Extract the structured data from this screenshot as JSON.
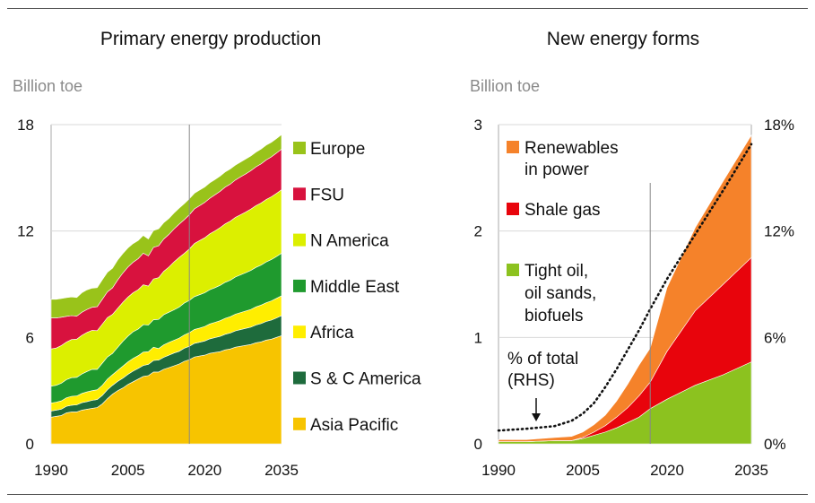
{
  "charts": [
    {
      "title": "Primary energy production",
      "unit": "Billion toe",
      "chart_data": {
        "type": "area",
        "stacked": true,
        "x": [
          1990,
          1991,
          1992,
          1993,
          1994,
          1995,
          1996,
          1997,
          1998,
          1999,
          2000,
          2001,
          2002,
          2003,
          2004,
          2005,
          2006,
          2007,
          2008,
          2009,
          2010,
          2011,
          2012,
          2013,
          2014,
          2015,
          2016,
          2017,
          2018,
          2019,
          2020,
          2021,
          2022,
          2023,
          2024,
          2025,
          2026,
          2027,
          2028,
          2029,
          2030,
          2031,
          2032,
          2033,
          2034,
          2035
        ],
        "x_ticks": [
          1990,
          2005,
          2020,
          2035
        ],
        "ylim": [
          0,
          18
        ],
        "y_ticks": [
          0,
          6,
          12,
          18
        ],
        "projection_start": 2017,
        "series": [
          {
            "name": "Asia Pacific",
            "color": "#f7c400",
            "values": [
              1.5,
              1.55,
              1.6,
              1.75,
              1.8,
              1.8,
              1.9,
              1.95,
              2.0,
              2.05,
              2.25,
              2.55,
              2.8,
              3.0,
              3.15,
              3.35,
              3.5,
              3.65,
              3.8,
              3.85,
              4.05,
              4.05,
              4.2,
              4.3,
              4.4,
              4.5,
              4.65,
              4.75,
              4.9,
              4.95,
              5.0,
              5.1,
              5.15,
              5.2,
              5.3,
              5.35,
              5.45,
              5.5,
              5.55,
              5.6,
              5.7,
              5.75,
              5.85,
              5.9,
              6.0,
              6.1
            ]
          },
          {
            "name": "S & C America",
            "color": "#1e6b3c",
            "values": [
              0.35,
              0.35,
              0.35,
              0.37,
              0.38,
              0.4,
              0.42,
              0.43,
              0.45,
              0.45,
              0.48,
              0.5,
              0.5,
              0.52,
              0.55,
              0.57,
              0.6,
              0.6,
              0.62,
              0.63,
              0.65,
              0.67,
              0.68,
              0.7,
              0.72,
              0.72,
              0.74,
              0.75,
              0.77,
              0.78,
              0.8,
              0.82,
              0.84,
              0.86,
              0.88,
              0.9,
              0.92,
              0.94,
              0.96,
              0.98,
              1.0,
              1.03,
              1.05,
              1.08,
              1.1,
              1.13
            ]
          },
          {
            "name": "Africa",
            "color": "#ffee00",
            "values": [
              0.45,
              0.45,
              0.47,
              0.48,
              0.5,
              0.5,
              0.52,
              0.55,
              0.55,
              0.55,
              0.57,
              0.6,
              0.6,
              0.62,
              0.68,
              0.7,
              0.72,
              0.72,
              0.75,
              0.72,
              0.75,
              0.65,
              0.7,
              0.72,
              0.72,
              0.74,
              0.75,
              0.77,
              0.78,
              0.8,
              0.82,
              0.84,
              0.86,
              0.88,
              0.9,
              0.92,
              0.94,
              0.96,
              0.98,
              1.0,
              1.02,
              1.04,
              1.06,
              1.08,
              1.1,
              1.12
            ]
          },
          {
            "name": "Middle East",
            "color": "#1f9a2e",
            "values": [
              0.95,
              0.95,
              1.0,
              1.02,
              1.05,
              1.05,
              1.1,
              1.15,
              1.2,
              1.15,
              1.25,
              1.25,
              1.2,
              1.3,
              1.4,
              1.45,
              1.5,
              1.5,
              1.55,
              1.5,
              1.55,
              1.65,
              1.7,
              1.7,
              1.72,
              1.75,
              1.8,
              1.82,
              1.85,
              1.88,
              1.9,
              1.93,
              1.96,
              2.0,
              2.03,
              2.06,
              2.1,
              2.13,
              2.16,
              2.2,
              2.23,
              2.26,
              2.3,
              2.33,
              2.36,
              2.4
            ]
          },
          {
            "name": "N America",
            "color": "#dcef00",
            "values": [
              2.1,
              2.1,
              2.12,
              2.12,
              2.15,
              2.15,
              2.18,
              2.2,
              2.2,
              2.18,
              2.2,
              2.22,
              2.2,
              2.2,
              2.2,
              2.2,
              2.2,
              2.22,
              2.25,
              2.2,
              2.3,
              2.35,
              2.45,
              2.55,
              2.7,
              2.8,
              2.8,
              2.9,
              3.0,
              3.05,
              3.1,
              3.15,
              3.2,
              3.25,
              3.3,
              3.33,
              3.36,
              3.39,
              3.42,
              3.45,
              3.48,
              3.5,
              3.52,
              3.54,
              3.56,
              3.58
            ]
          },
          {
            "name": "FSU",
            "color": "#d8123e",
            "values": [
              1.75,
              1.7,
              1.6,
              1.45,
              1.35,
              1.3,
              1.3,
              1.3,
              1.3,
              1.35,
              1.4,
              1.45,
              1.5,
              1.6,
              1.65,
              1.7,
              1.72,
              1.75,
              1.78,
              1.7,
              1.78,
              1.8,
              1.82,
              1.84,
              1.86,
              1.88,
              1.9,
              1.93,
              1.95,
              1.97,
              1.99,
              2.01,
              2.03,
              2.05,
              2.07,
              2.09,
              2.11,
              2.13,
              2.15,
              2.17,
              2.19,
              2.21,
              2.23,
              2.25,
              2.27,
              2.29
            ]
          },
          {
            "name": "Europe",
            "color": "#99c31a",
            "values": [
              1.05,
              1.05,
              1.05,
              1.05,
              1.05,
              1.05,
              1.1,
              1.1,
              1.08,
              1.08,
              1.1,
              1.1,
              1.1,
              1.12,
              1.1,
              1.08,
              1.05,
              1.02,
              1.0,
              0.95,
              0.95,
              0.95,
              0.92,
              0.9,
              0.9,
              0.9,
              0.9,
              0.9,
              0.88,
              0.88,
              0.87,
              0.87,
              0.86,
              0.86,
              0.85,
              0.85,
              0.84,
              0.84,
              0.84,
              0.83,
              0.83,
              0.83,
              0.83,
              0.82,
              0.82,
              0.82
            ]
          }
        ]
      }
    },
    {
      "title": "New energy forms",
      "unit": "Billion toe",
      "chart_data": {
        "type": "area",
        "stacked": true,
        "x": [
          1990,
          1995,
          2000,
          2003,
          2005,
          2007,
          2009,
          2011,
          2013,
          2015,
          2017,
          2020,
          2025,
          2030,
          2035
        ],
        "x_ticks": [
          1990,
          2005,
          2020,
          2035
        ],
        "ylim": [
          0,
          3
        ],
        "y_ticks": [
          0,
          1,
          2,
          3
        ],
        "y2lim": [
          0,
          18
        ],
        "y2_ticks": [
          "0%",
          "6%",
          "12%",
          "18%"
        ],
        "projection_start": 2017,
        "series": [
          {
            "name": "Tight oil, oil sands, biofuels",
            "color": "#8cc21f",
            "values": [
              0.02,
              0.02,
              0.03,
              0.03,
              0.05,
              0.08,
              0.11,
              0.15,
              0.2,
              0.25,
              0.33,
              0.42,
              0.55,
              0.65,
              0.77
            ]
          },
          {
            "name": "Shale gas",
            "color": "#e8040c",
            "values": [
              0,
              0,
              0,
              0,
              0.01,
              0.03,
              0.06,
              0.1,
              0.14,
              0.2,
              0.25,
              0.45,
              0.7,
              0.85,
              0.98
            ]
          },
          {
            "name": "Renewables in power",
            "color": "#f5822a",
            "values": [
              0.02,
              0.02,
              0.03,
              0.04,
              0.05,
              0.07,
              0.1,
              0.15,
              0.22,
              0.29,
              0.32,
              0.6,
              0.78,
              0.97,
              1.15
            ]
          }
        ],
        "line": {
          "name": "% of total (RHS)",
          "axis": "right",
          "style": "dotted",
          "x": [
            1990,
            1995,
            2000,
            2003,
            2005,
            2007,
            2009,
            2011,
            2013,
            2015,
            2017,
            2020,
            2025,
            2030,
            2035
          ],
          "values": [
            0.75,
            0.85,
            1.0,
            1.3,
            1.7,
            2.3,
            3.2,
            4.2,
            5.3,
            6.4,
            7.6,
            9.3,
            11.8,
            14.3,
            16.9
          ]
        }
      }
    }
  ],
  "legends": {
    "left": [
      "Europe",
      "FSU",
      "N America",
      "Middle East",
      "Africa",
      "S & C America",
      "Asia Pacific"
    ],
    "right_renewables": [
      "Renewables",
      "in power"
    ],
    "right_shale": [
      "Shale gas"
    ],
    "right_tight": [
      "Tight oil,",
      "oil sands,",
      "biofuels"
    ],
    "right_line": [
      "% of total",
      "(RHS)"
    ]
  }
}
